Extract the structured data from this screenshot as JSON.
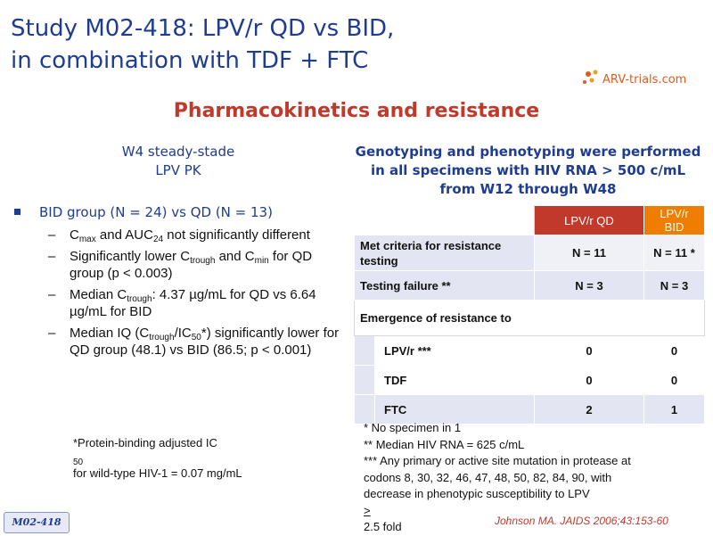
{
  "title": {
    "line1": "Study M02-418: LPV/r QD vs BID,",
    "line2": "in combination with TDF + FTC"
  },
  "logo": {
    "text": "ARV-trials.com",
    "color": "#e05a1c"
  },
  "subtitle": "Pharmacokinetics and resistance",
  "pk_heading": {
    "line1": "W4 steady-stade",
    "line2": "LPV PK"
  },
  "geno_heading": {
    "line1": "Genotyping and phenotyping were performed",
    "line2": "in all specimens with HIV RNA > 500 c/mL",
    "line3": "from W12 through W48"
  },
  "bullet": {
    "main": "BID group (N = 24) vs QD (N = 13)",
    "sub1": {
      "a": "C",
      "a_sub": "max",
      "b": " and AUC",
      "b_sub": "24",
      "c": " not significantly different"
    },
    "sub2": {
      "a": "Significantly lower C",
      "a_sub": "trough",
      "b": " and C",
      "b_sub": "min",
      "c": " for QD group (p < 0.003)"
    },
    "sub3": {
      "a": "Median C",
      "a_sub": "trough",
      "b": ": 4.37 µg/mL for QD vs 6.64 µg/mL for BID"
    },
    "sub4": {
      "a": "Median IQ (C",
      "a_sub": "trough",
      "b": "/IC",
      "b_sub": "50",
      "c": "*) significantly lower for QD group (48.1) vs BID (86.5; p < 0.001)"
    }
  },
  "footnote": {
    "line1_a": "*Protein-binding adjusted IC",
    "line1_sub": "50",
    "line2": "for wild-type HIV-1 = 0.07 mg/mL"
  },
  "table": {
    "col_qd": "LPV/r QD",
    "col_bid": "LPV/r BID",
    "rows": [
      {
        "label": "Met criteria for resistance testing",
        "qd": "N = 11",
        "bid": "N = 11 *"
      },
      {
        "label": "Testing failure **",
        "qd": "N = 3",
        "bid": "N = 3"
      }
    ],
    "emergence_label": "Emergence of resistance to",
    "sub_rows": [
      {
        "label": "LPV/r ***",
        "qd": "0",
        "bid": "0"
      },
      {
        "label": "TDF",
        "qd": "0",
        "bid": "0"
      },
      {
        "label": "FTC",
        "qd": "2",
        "bid": "1"
      }
    ],
    "colors": {
      "qd_header": "#c0392b",
      "bid_header": "#ef7d00",
      "cell": "#e3e6f2"
    }
  },
  "notes": {
    "n1": "* No specimen in 1",
    "n2": "** Median HIV RNA = 625 c/mL",
    "n3": "*** Any primary or active site mutation in protease at",
    "n4": "codons 8, 30, 32, 46, 47, 48, 50, 82, 84, 90, with",
    "n5_a": "decrease in phenotypic susceptibility to LPV ",
    "n5_ge": ">",
    "n5_b": " 2.5 fold"
  },
  "citation": "Johnson MA. JAIDS 2006;43:153-60",
  "badge": "M02-418"
}
